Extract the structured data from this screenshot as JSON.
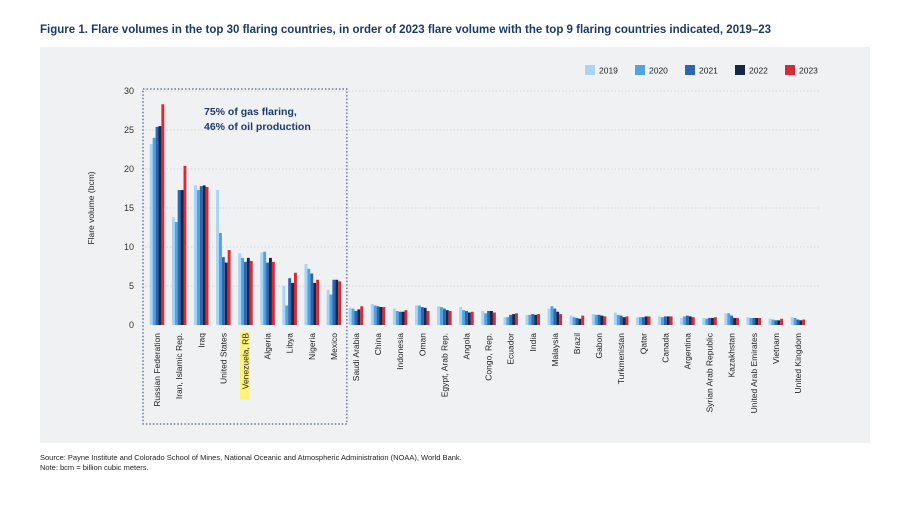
{
  "title": "Figure 1. Flare volumes in the top 30 flaring countries, in order of 2023 flare volume with the top 9 flaring countries indicated, 2019–23",
  "source": "Source: Payne Institute and Colorado School of Mines, National Oceanic and Atmospheric Administration (NOAA), World Bank.",
  "note": "Note: bcm = billion cubic meters.",
  "chart_data": {
    "type": "bar",
    "title": "",
    "xlabel": "",
    "ylabel": "Flare volume (bcm)",
    "ylim": [
      0,
      30
    ],
    "yticks": [
      0,
      5,
      10,
      15,
      20,
      25,
      30
    ],
    "grid": true,
    "legend": "top-right",
    "annotation": {
      "line1": "75% of gas flaring,",
      "line2": "46% of oil production",
      "group_count": 9
    },
    "highlighted_category": "Venezuela, RB",
    "highlight_color": "#fff27a",
    "categories": [
      "Russian Federation",
      "Iran, Islamic Rep.",
      "Iraq",
      "United States",
      "Venezuela, RB",
      "Algeria",
      "Libya",
      "Nigeria",
      "Mexico",
      "Saudi Arabia",
      "China",
      "Indonesia",
      "Oman",
      "Egypt, Arab Rep.",
      "Angola",
      "Congo, Rep.",
      "Ecuador",
      "India",
      "Malaysia",
      "Brazil",
      "Gabon",
      "Turkmenistan",
      "Qatar",
      "Canada",
      "Argentina",
      "Syrian Arab Republic",
      "Kazakhstan",
      "United Arab Emirates",
      "Vietnam",
      "United Kingdom"
    ],
    "series": [
      {
        "name": "2019",
        "color": "#a9d4f5",
        "values": [
          23.2,
          13.8,
          17.9,
          17.3,
          9.2,
          9.3,
          5.0,
          7.8,
          4.5,
          2.2,
          2.7,
          2.1,
          2.5,
          2.4,
          2.3,
          1.8,
          1.0,
          1.3,
          2.1,
          1.2,
          1.4,
          1.6,
          1.0,
          1.1,
          0.9,
          0.9,
          1.5,
          1.0,
          0.8,
          1.0
        ]
      },
      {
        "name": "2020",
        "color": "#4fa3e0",
        "values": [
          24.0,
          13.2,
          17.3,
          11.8,
          8.6,
          9.4,
          2.5,
          7.2,
          3.9,
          2.1,
          2.5,
          1.8,
          2.5,
          2.3,
          1.9,
          1.5,
          1.0,
          1.3,
          2.4,
          1.0,
          1.3,
          1.3,
          1.0,
          1.0,
          1.1,
          0.8,
          1.5,
          0.9,
          0.7,
          0.9
        ]
      },
      {
        "name": "2021",
        "color": "#2e64b0",
        "values": [
          25.4,
          17.3,
          17.8,
          8.7,
          8.1,
          8.0,
          6.0,
          6.6,
          5.8,
          1.8,
          2.4,
          1.7,
          2.3,
          2.1,
          1.8,
          1.8,
          1.3,
          1.4,
          2.1,
          0.9,
          1.3,
          1.2,
          1.0,
          1.1,
          1.2,
          0.9,
          1.2,
          0.9,
          0.6,
          0.7
        ]
      },
      {
        "name": "2022",
        "color": "#14284b",
        "values": [
          25.5,
          17.3,
          17.9,
          8.0,
          8.6,
          8.6,
          5.4,
          5.4,
          5.8,
          2.0,
          2.3,
          1.7,
          2.2,
          1.9,
          1.6,
          1.8,
          1.4,
          1.3,
          1.7,
          0.8,
          1.2,
          1.0,
          1.1,
          1.1,
          1.1,
          0.9,
          0.9,
          0.9,
          0.6,
          0.6
        ]
      },
      {
        "name": "2023",
        "color": "#d52b36",
        "values": [
          28.3,
          20.4,
          17.7,
          9.6,
          8.2,
          8.1,
          6.7,
          5.8,
          5.6,
          2.4,
          2.3,
          1.9,
          1.8,
          1.8,
          1.7,
          1.6,
          1.5,
          1.4,
          1.4,
          1.2,
          1.1,
          1.1,
          1.1,
          1.1,
          1.0,
          1.0,
          0.9,
          0.9,
          0.8,
          0.7
        ]
      }
    ]
  }
}
